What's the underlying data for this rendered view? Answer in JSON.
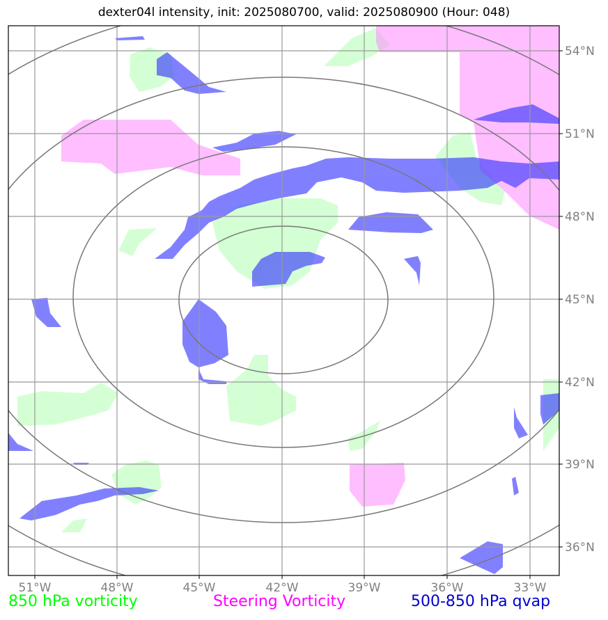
{
  "title": "dexter04l intensity, init: 2025080700, valid: 2025080900 (Hour: 048)",
  "legend": {
    "green": {
      "label": "850 hPa vorticity",
      "color": "#00ff00"
    },
    "magenta": {
      "label": "Steering Vorticity",
      "color": "#ff00ff"
    },
    "blue": {
      "label": "500-850 hPa qvap",
      "color": "#0000cc"
    }
  },
  "axes": {
    "lon_labels": [
      "51°W",
      "48°W",
      "45°W",
      "42°W",
      "39°W",
      "36°W",
      "33°W"
    ],
    "lat_labels": [
      "54°N",
      "51°N",
      "48°N",
      "45°N",
      "42°N",
      "39°N",
      "36°N"
    ]
  },
  "colors": {
    "green_fill": "#ccffcc",
    "magenta_fill": "#ff88ff",
    "blue_fill": "#3333ff",
    "grid": "#999999",
    "rings": "#777777"
  }
}
